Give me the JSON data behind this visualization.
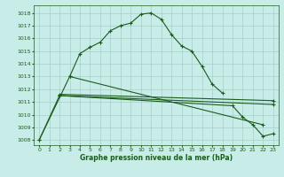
{
  "xlabel": "Graphe pression niveau de la mer (hPa)",
  "x_ticks": [
    0,
    1,
    2,
    3,
    4,
    5,
    6,
    7,
    8,
    9,
    10,
    11,
    12,
    13,
    14,
    15,
    16,
    17,
    18,
    19,
    20,
    21,
    22,
    23
  ],
  "y_ticks": [
    1008,
    1009,
    1010,
    1011,
    1012,
    1013,
    1014,
    1015,
    1016,
    1017,
    1018
  ],
  "ylim": [
    1007.6,
    1018.6
  ],
  "xlim": [
    -0.5,
    23.5
  ],
  "bg_color": "#c8ece8",
  "grid_color": "#a0c8c4",
  "line_color": "#1a5c1a",
  "line1_x": [
    0,
    3,
    4,
    5,
    6,
    7,
    8,
    9,
    10,
    11,
    12,
    13,
    14,
    15,
    16,
    17,
    18
  ],
  "line1_y": [
    1008.0,
    1013.0,
    1014.8,
    1015.3,
    1015.7,
    1016.6,
    1017.0,
    1017.2,
    1017.9,
    1018.0,
    1017.5,
    1016.3,
    1015.4,
    1015.0,
    1013.8,
    1012.4,
    1011.7
  ],
  "line2_x": [
    0,
    2,
    19,
    20,
    21,
    22,
    23
  ],
  "line2_y": [
    1008.0,
    1011.5,
    1010.7,
    1009.8,
    1009.2,
    1008.3,
    1008.5
  ],
  "line3_x": [
    3,
    22
  ],
  "line3_y": [
    1013.0,
    1009.2
  ],
  "line4_x": [
    2,
    23
  ],
  "line4_y": [
    1011.5,
    1010.8
  ],
  "line5_x": [
    2,
    23
  ],
  "line5_y": [
    1011.6,
    1011.1
  ],
  "lw": 0.8,
  "ms": 2.5,
  "mew": 0.8,
  "tick_fontsize": 4.5,
  "xlabel_fontsize": 5.5
}
